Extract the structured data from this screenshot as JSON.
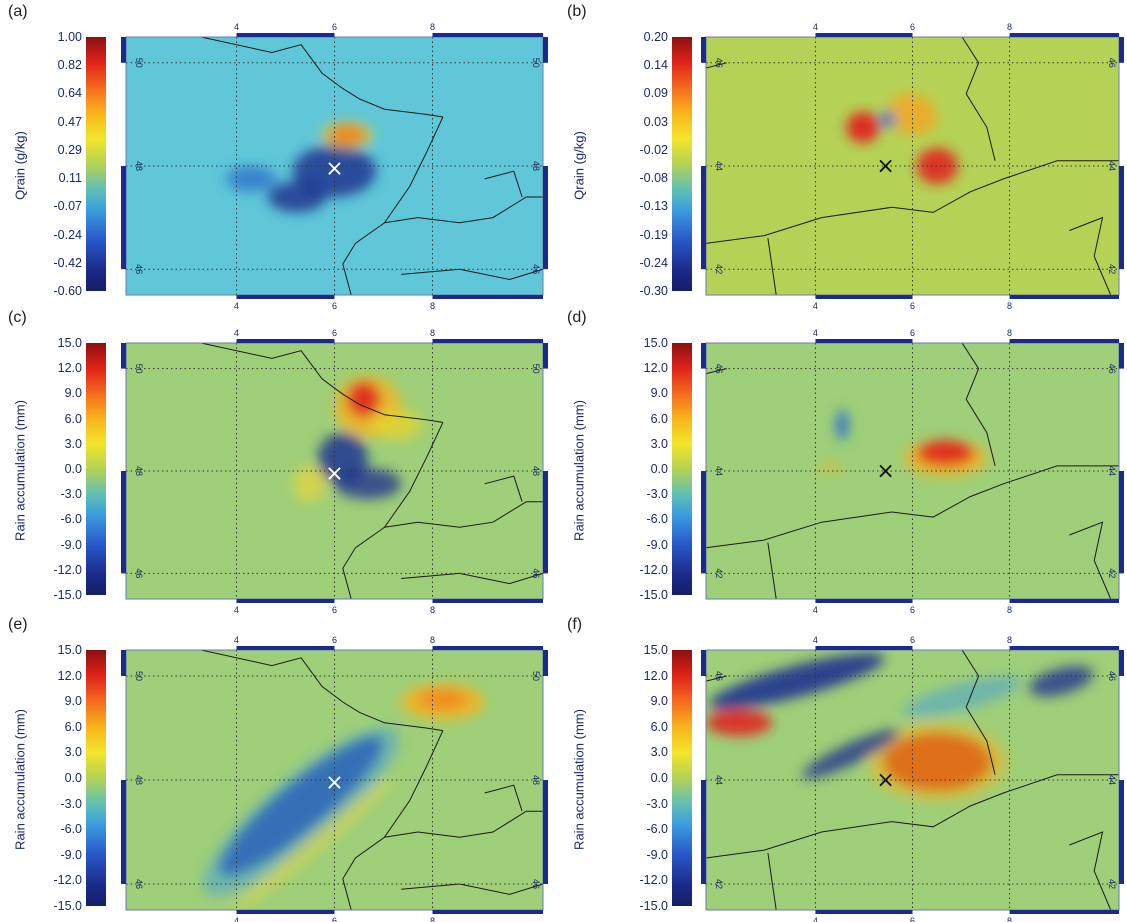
{
  "colors": {
    "background": "#5fc7d8",
    "landfield": "#9fcf78",
    "accent_red": "#d91c1c",
    "accent_blue": "#1b2a8c"
  },
  "chart_data": [
    {
      "type": "heatmap",
      "panel": "(a)",
      "ylabel": "Qrain (g/kg)",
      "colorbar_ticks": [
        "1.00",
        "0.82",
        "0.64",
        "0.47",
        "0.29",
        "0.11",
        "-0.07",
        "-0.24",
        "-0.42",
        "-0.60"
      ],
      "x_ticks": [
        "4",
        "6",
        "8"
      ],
      "y_ticks": [
        "50",
        "48",
        "46"
      ],
      "marker": "×",
      "marker_color": "white"
    },
    {
      "type": "heatmap",
      "panel": "(b)",
      "ylabel": "Qrain (g/kg)",
      "colorbar_ticks": [
        "0.20",
        "0.14",
        "0.09",
        "0.03",
        "-0.02",
        "-0.08",
        "-0.13",
        "-0.19",
        "-0.24",
        "-0.30"
      ],
      "x_ticks": [
        "4",
        "6",
        "8"
      ],
      "y_ticks": [
        "46",
        "44",
        "42"
      ],
      "marker": "×",
      "marker_color": "black"
    },
    {
      "type": "heatmap",
      "panel": "(c)",
      "ylabel": "Rain accumulation (mm)",
      "colorbar_ticks": [
        "15.0",
        "12.0",
        "9.0",
        "6.0",
        "3.0",
        "0.0",
        "-3.0",
        "-6.0",
        "-9.0",
        "-12.0",
        "-15.0"
      ],
      "x_ticks": [
        "4",
        "6",
        "8"
      ],
      "y_ticks": [
        "50",
        "48",
        "46"
      ],
      "marker": "×",
      "marker_color": "white"
    },
    {
      "type": "heatmap",
      "panel": "(d)",
      "ylabel": "Rain accumulation (mm)",
      "colorbar_ticks": [
        "15.0",
        "12.0",
        "9.0",
        "6.0",
        "3.0",
        "0.0",
        "-3.0",
        "-6.0",
        "-9.0",
        "-12.0",
        "-15.0"
      ],
      "x_ticks": [
        "4",
        "6",
        "8"
      ],
      "y_ticks": [
        "46",
        "44",
        "42"
      ],
      "marker": "×",
      "marker_color": "black"
    },
    {
      "type": "heatmap",
      "panel": "(e)",
      "ylabel": "Rain accumulation (mm)",
      "colorbar_ticks": [
        "15.0",
        "12.0",
        "9.0",
        "6.0",
        "3.0",
        "0.0",
        "-3.0",
        "-6.0",
        "-9.0",
        "-12.0",
        "-15.0"
      ],
      "x_ticks": [
        "4",
        "6",
        "8"
      ],
      "y_ticks": [
        "50",
        "48",
        "46"
      ],
      "marker": "×",
      "marker_color": "white"
    },
    {
      "type": "heatmap",
      "panel": "(f)",
      "ylabel": "Rain accumulation (mm)",
      "colorbar_ticks": [
        "15.0",
        "12.0",
        "9.0",
        "6.0",
        "3.0",
        "0.0",
        "-3.0",
        "-6.0",
        "-9.0",
        "-12.0",
        "-15.0"
      ],
      "x_ticks": [
        "4",
        "6",
        "8"
      ],
      "y_ticks": [
        "46",
        "44",
        "42"
      ],
      "marker": "×",
      "marker_color": "black"
    }
  ]
}
